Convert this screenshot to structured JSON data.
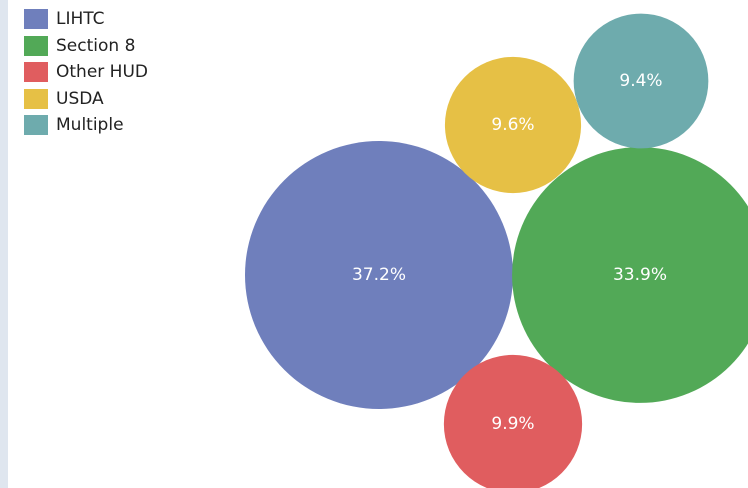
{
  "chart_data": {
    "type": "bubble",
    "legend_position": "top-left",
    "series": [
      {
        "name": "LIHTC",
        "value": 37.2,
        "label": "37.2%",
        "color": "#6f7fbc"
      },
      {
        "name": "Section 8",
        "value": 33.9,
        "label": "33.9%",
        "color": "#52a957"
      },
      {
        "name": "Other HUD",
        "value": 9.9,
        "label": "9.9%",
        "color": "#e05d5f"
      },
      {
        "name": "USDA",
        "value": 9.6,
        "label": "9.6%",
        "color": "#e6c045"
      },
      {
        "name": "Multiple",
        "value": 9.4,
        "label": "9.4%",
        "color": "#6eabad"
      }
    ]
  }
}
